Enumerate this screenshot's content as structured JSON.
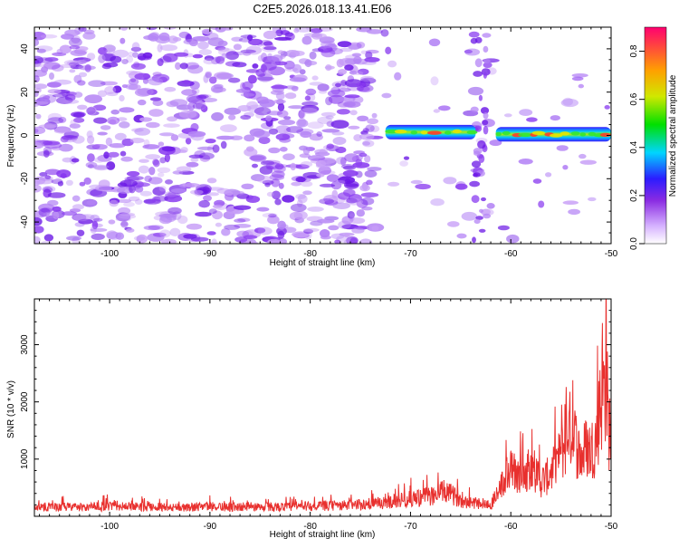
{
  "title": "C2E5.2026.018.13.41.E06",
  "colors": {
    "line": "#e8302e",
    "blob_purple": "#8a3cf0",
    "blob_light": "#c79ef7",
    "blob_dark": "#6b17e6"
  },
  "chart_data": [
    {
      "type": "heatmap",
      "title": "C2E5.2026.018.13.41.E06",
      "xlabel": "Height of straight line (km)",
      "ylabel": "Frequency (Hz)",
      "xlim": [
        -107.5,
        -50
      ],
      "ylim": [
        -50,
        50
      ],
      "xticks": [
        -100,
        -90,
        -80,
        -70,
        -60,
        -50
      ],
      "xtick_labels": [
        "-100",
        "-90",
        "-80",
        "-70",
        "-60",
        "-50"
      ],
      "yticks": [
        -40,
        -20,
        0,
        20,
        40
      ],
      "ytick_labels": [
        "-40",
        "-20",
        "0",
        "20",
        "40"
      ],
      "signal_bands": [
        {
          "x_start": -72.5,
          "x_end": -63.5,
          "freq": 1.5
        },
        {
          "x_start": -61.5,
          "x_end": -50,
          "freq": 0.5
        }
      ],
      "colorbar": {
        "label": "Normalized spectral amplitude",
        "range": [
          0,
          0.9
        ],
        "ticks": [
          0.0,
          0.2,
          0.4,
          0.6,
          0.8
        ],
        "tick_labels": [
          "0.0",
          "0.2",
          "0.4",
          "0.6",
          "0.8"
        ]
      }
    },
    {
      "type": "line",
      "xlabel": "Height of straight line (km)",
      "ylabel": "SNR (10 * v/v)",
      "xlim": [
        -107.5,
        -50
      ],
      "ylim": [
        0,
        3800
      ],
      "xticks": [
        -100,
        -90,
        -80,
        -70,
        -60,
        -50
      ],
      "xtick_labels": [
        "-100",
        "-90",
        "-80",
        "-70",
        "-60",
        "-50"
      ],
      "yticks": [
        1000,
        2000,
        3000
      ],
      "ytick_labels": [
        "1000",
        "2000",
        "3000"
      ],
      "series": [
        {
          "name": "SNR",
          "x": [
            -107.5,
            -105,
            -102.5,
            -100,
            -97.5,
            -95,
            -92.5,
            -90,
            -87.5,
            -85,
            -82.5,
            -80,
            -77.5,
            -75,
            -72.5,
            -70,
            -68,
            -66.5,
            -65,
            -63.5,
            -62,
            -61,
            -60,
            -59,
            -58,
            -57,
            -56,
            -55,
            -54,
            -53.5,
            -53,
            -52.5,
            -52,
            -51.5,
            -51,
            -50.5,
            -50.2,
            -50
          ],
          "values": [
            230,
            240,
            230,
            260,
            240,
            250,
            230,
            260,
            240,
            250,
            240,
            260,
            270,
            300,
            350,
            450,
            520,
            650,
            420,
            350,
            300,
            750,
            1200,
            1000,
            1350,
            900,
            1100,
            1600,
            2300,
            1900,
            1500,
            1800,
            1700,
            2000,
            3000,
            3550,
            2200,
            2200
          ]
        }
      ]
    }
  ]
}
